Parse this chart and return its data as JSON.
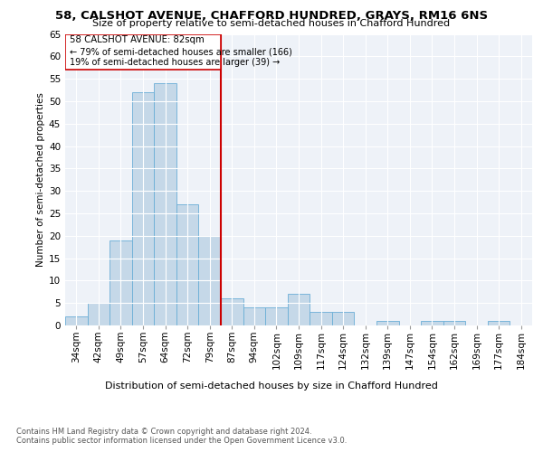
{
  "title1": "58, CALSHOT AVENUE, CHAFFORD HUNDRED, GRAYS, RM16 6NS",
  "title2": "Size of property relative to semi-detached houses in Chafford Hundred",
  "xlabel": "Distribution of semi-detached houses by size in Chafford Hundred",
  "ylabel": "Number of semi-detached properties",
  "footnote": "Contains HM Land Registry data © Crown copyright and database right 2024.\nContains public sector information licensed under the Open Government Licence v3.0.",
  "categories": [
    "34sqm",
    "42sqm",
    "49sqm",
    "57sqm",
    "64sqm",
    "72sqm",
    "79sqm",
    "87sqm",
    "94sqm",
    "102sqm",
    "109sqm",
    "117sqm",
    "124sqm",
    "132sqm",
    "139sqm",
    "147sqm",
    "154sqm",
    "162sqm",
    "169sqm",
    "177sqm",
    "184sqm"
  ],
  "values": [
    2,
    5,
    19,
    52,
    54,
    27,
    20,
    6,
    4,
    4,
    7,
    3,
    3,
    0,
    1,
    0,
    1,
    1,
    0,
    1,
    0
  ],
  "bar_color": "#c5d8e8",
  "bar_edge_color": "#6aaed6",
  "vline_x": 6.5,
  "vline_color": "#cc0000",
  "annotation_title": "58 CALSHOT AVENUE: 82sqm",
  "annotation_line1": "← 79% of semi-detached houses are smaller (166)",
  "annotation_line2": "19% of semi-detached houses are larger (39) →",
  "box_color": "#cc0000",
  "ylim": [
    0,
    65
  ],
  "yticks": [
    0,
    5,
    10,
    15,
    20,
    25,
    30,
    35,
    40,
    45,
    50,
    55,
    60,
    65
  ],
  "bg_color": "#eef2f8",
  "title1_fontsize": 9.5,
  "title2_fontsize": 8.0,
  "ylabel_fontsize": 7.5,
  "xlabel_fontsize": 8.0,
  "tick_fontsize": 7.5,
  "footnote_fontsize": 6.0
}
